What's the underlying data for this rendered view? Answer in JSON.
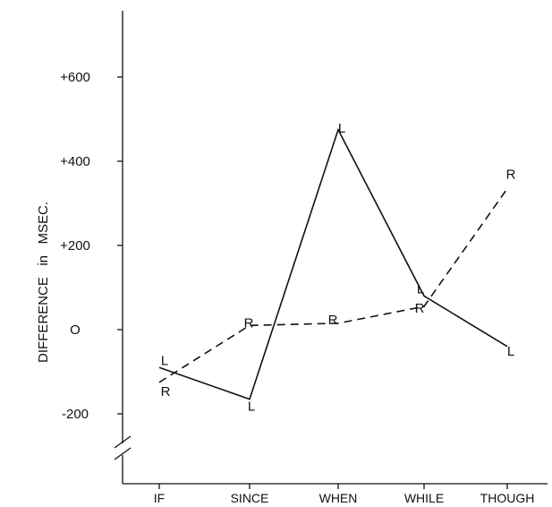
{
  "chart_data": {
    "type": "line",
    "title": "",
    "xlabel": "",
    "ylabel": "DIFFERENCE   in   MSEC.",
    "categories": [
      "IF",
      "SINCE",
      "WHEN",
      "WHILE",
      "THOUGH"
    ],
    "yticks": [
      {
        "value": 600,
        "label": "+600"
      },
      {
        "value": 400,
        "label": "+400"
      },
      {
        "value": 200,
        "label": "+200"
      },
      {
        "value": 0,
        "label": "O"
      },
      {
        "value": -200,
        "label": "-200"
      }
    ],
    "ylim": [
      -270,
      720
    ],
    "axis_break": true,
    "grid": false,
    "legend": "none",
    "series": [
      {
        "name": "L",
        "marker": "L",
        "dash": "solid",
        "values": [
          -90,
          -165,
          475,
          80,
          -40
        ]
      },
      {
        "name": "R",
        "marker": "R",
        "dash": "dashed",
        "values": [
          -125,
          10,
          15,
          55,
          335
        ]
      }
    ]
  }
}
